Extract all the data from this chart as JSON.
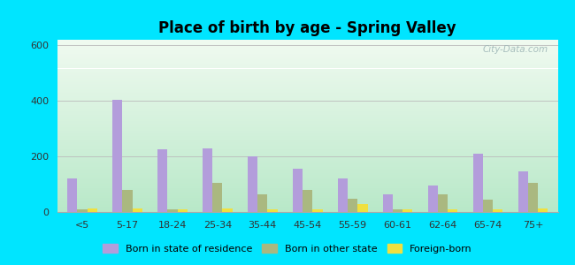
{
  "title": "Place of birth by age - Spring Valley",
  "categories": [
    "<5",
    "5-17",
    "18-24",
    "25-34",
    "35-44",
    "45-54",
    "55-59",
    "60-61",
    "62-64",
    "65-74",
    "75+"
  ],
  "born_in_state": [
    120,
    405,
    225,
    228,
    200,
    155,
    120,
    65,
    95,
    210,
    145
  ],
  "born_other_state": [
    10,
    80,
    10,
    105,
    65,
    80,
    48,
    8,
    65,
    45,
    105
  ],
  "foreign_born": [
    12,
    12,
    8,
    12,
    8,
    10,
    28,
    8,
    8,
    10,
    12
  ],
  "bar_color_state": "#b39ddb",
  "bar_color_other": "#aab880",
  "bar_color_foreign": "#f0e040",
  "ylim": [
    0,
    620
  ],
  "yticks": [
    0,
    200,
    400,
    600
  ],
  "outer_bg": "#00e5ff",
  "grad_top": "#f0faf0",
  "grad_bottom": "#b8e8c8",
  "watermark": "City-Data.com",
  "legend_labels": [
    "Born in state of residence",
    "Born in other state",
    "Foreign-born"
  ],
  "bar_width": 0.22
}
